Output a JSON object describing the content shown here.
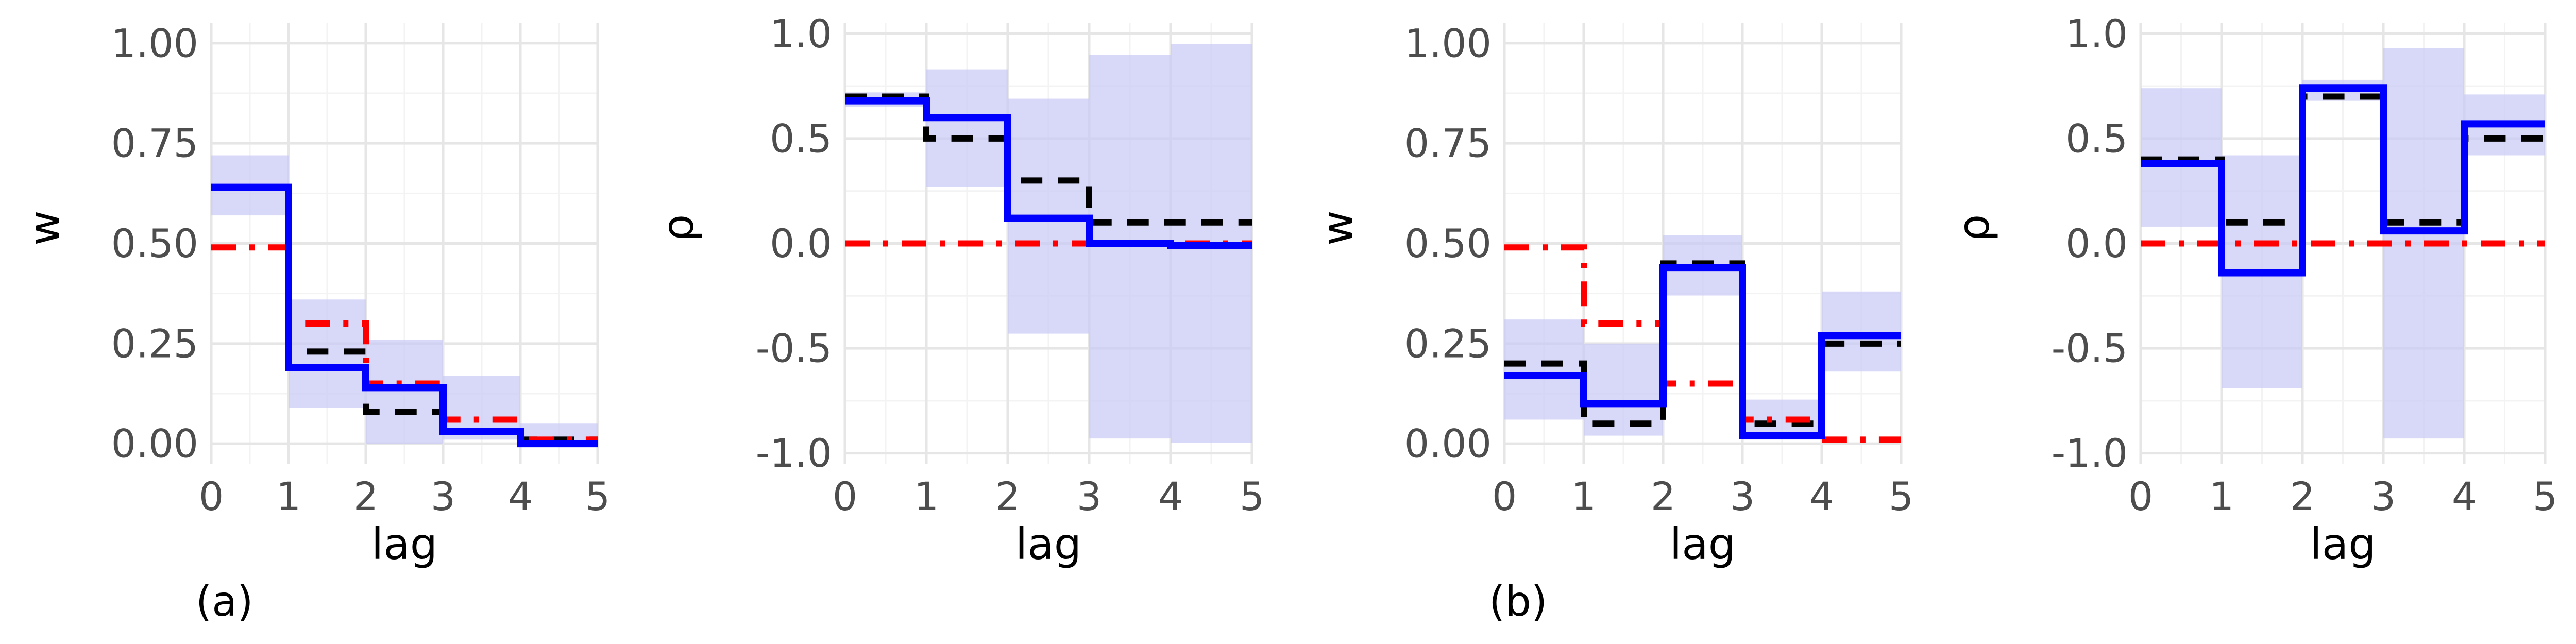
{
  "colors": {
    "background": "#ffffff",
    "grid_major": "#e6e6e6",
    "grid_minor": "#f3f3f3",
    "band_fill": "#c8c8f5",
    "estimate_line": "#0000ff",
    "truth_line": "#000000",
    "reference_line": "#ff0000"
  },
  "chart_data": [
    {
      "type": "line",
      "step": true,
      "panel_tag": "(a)",
      "xlabel": "lag",
      "ylabel": "w",
      "xlim": [
        0,
        5
      ],
      "ylim": [
        -0.05,
        1.05
      ],
      "x_ticks": [
        0,
        1,
        2,
        3,
        4,
        5
      ],
      "x_tick_labels": [
        "0",
        "1",
        "2",
        "3",
        "4",
        "5"
      ],
      "y_ticks": [
        0,
        0.25,
        0.5,
        0.75,
        1
      ],
      "y_tick_labels": [
        "0.00",
        "0.25",
        "0.50",
        "0.75",
        "1.00"
      ],
      "grid": true,
      "band": {
        "lower": [
          0.57,
          0.09,
          0.0,
          0.01,
          0.0
        ],
        "upper": [
          0.72,
          0.36,
          0.26,
          0.17,
          0.05
        ]
      },
      "series": [
        {
          "style": "dashed-black",
          "values": [
            0.64,
            0.23,
            0.08,
            0.03,
            0.01
          ]
        },
        {
          "style": "dotdash-red",
          "values": [
            0.49,
            0.3,
            0.15,
            0.06,
            0.01
          ]
        },
        {
          "style": "solid-blue",
          "values": [
            0.64,
            0.19,
            0.14,
            0.03,
            0.0
          ]
        }
      ]
    },
    {
      "type": "line",
      "step": true,
      "panel_tag": "",
      "xlabel": "lag",
      "ylabel": "ρ",
      "xlim": [
        0,
        5
      ],
      "ylim": [
        -1.05,
        1.05
      ],
      "x_ticks": [
        0,
        1,
        2,
        3,
        4,
        5
      ],
      "x_tick_labels": [
        "0",
        "1",
        "2",
        "3",
        "4",
        "5"
      ],
      "y_ticks": [
        -1,
        -0.5,
        0,
        0.5,
        1
      ],
      "y_tick_labels": [
        "-1.0",
        "-0.5",
        "0.0",
        "0.5",
        "1.0"
      ],
      "grid": true,
      "band": {
        "lower": [
          0.65,
          0.27,
          -0.43,
          -0.93,
          -0.95
        ],
        "upper": [
          0.72,
          0.83,
          0.69,
          0.9,
          0.95
        ]
      },
      "series": [
        {
          "style": "dashed-black",
          "values": [
            0.7,
            0.5,
            0.3,
            0.1,
            0.1
          ]
        },
        {
          "style": "dotdash-red",
          "values": [
            0.0,
            0.0,
            0.0,
            0.0,
            0.0
          ]
        },
        {
          "style": "solid-blue",
          "values": [
            0.68,
            0.6,
            0.12,
            0.0,
            -0.01
          ]
        }
      ]
    },
    {
      "type": "line",
      "step": true,
      "panel_tag": "(b)",
      "xlabel": "lag",
      "ylabel": "w",
      "xlim": [
        0,
        5
      ],
      "ylim": [
        -0.05,
        1.05
      ],
      "x_ticks": [
        0,
        1,
        2,
        3,
        4,
        5
      ],
      "x_tick_labels": [
        "0",
        "1",
        "2",
        "3",
        "4",
        "5"
      ],
      "y_ticks": [
        0,
        0.25,
        0.5,
        0.75,
        1
      ],
      "y_tick_labels": [
        "0.00",
        "0.25",
        "0.50",
        "0.75",
        "1.00"
      ],
      "grid": true,
      "band": {
        "lower": [
          0.06,
          0.02,
          0.37,
          0.01,
          0.18
        ],
        "upper": [
          0.31,
          0.25,
          0.52,
          0.11,
          0.38
        ]
      },
      "series": [
        {
          "style": "dashed-black",
          "values": [
            0.2,
            0.05,
            0.45,
            0.05,
            0.25
          ]
        },
        {
          "style": "dotdash-red",
          "values": [
            0.49,
            0.3,
            0.15,
            0.06,
            0.01
          ]
        },
        {
          "style": "solid-blue",
          "values": [
            0.17,
            0.1,
            0.44,
            0.02,
            0.27
          ]
        }
      ]
    },
    {
      "type": "line",
      "step": true,
      "panel_tag": "",
      "xlabel": "lag",
      "ylabel": "ρ",
      "xlim": [
        0,
        5
      ],
      "ylim": [
        -1.05,
        1.05
      ],
      "x_ticks": [
        0,
        1,
        2,
        3,
        4,
        5
      ],
      "x_tick_labels": [
        "0",
        "1",
        "2",
        "3",
        "4",
        "5"
      ],
      "y_ticks": [
        -1,
        -0.5,
        0,
        0.5,
        1
      ],
      "y_tick_labels": [
        "-1.0",
        "-0.5",
        "0.0",
        "0.5",
        "1.0"
      ],
      "grid": true,
      "band": {
        "lower": [
          0.08,
          -0.69,
          0.68,
          -0.93,
          0.42
        ],
        "upper": [
          0.74,
          0.42,
          0.78,
          0.93,
          0.71
        ]
      },
      "series": [
        {
          "style": "dashed-black",
          "values": [
            0.4,
            0.1,
            0.7,
            0.1,
            0.5
          ]
        },
        {
          "style": "dotdash-red",
          "values": [
            0.0,
            0.0,
            0.0,
            0.0,
            0.0
          ]
        },
        {
          "style": "solid-blue",
          "values": [
            0.38,
            -0.14,
            0.74,
            0.06,
            0.57
          ]
        }
      ]
    }
  ]
}
